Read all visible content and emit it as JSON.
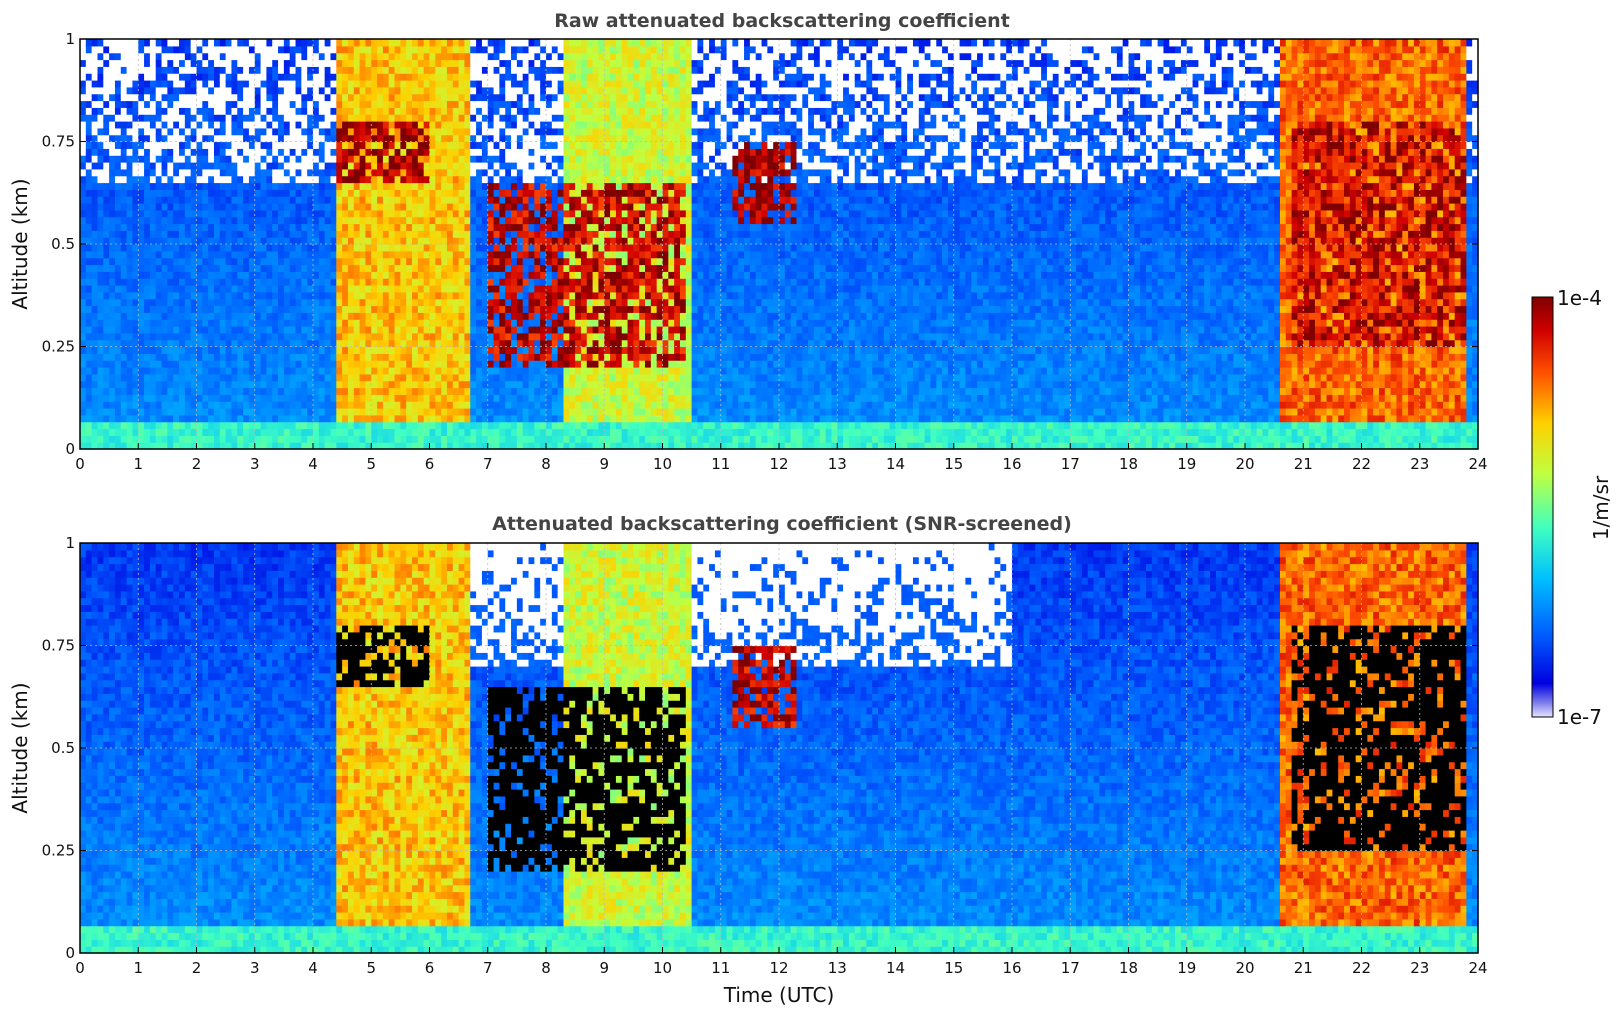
{
  "figure": {
    "xlabel": "Time (UTC)",
    "colorbar": {
      "label": "1/m/sr",
      "max_label": "1e-4",
      "min_label": "1e-7"
    }
  },
  "chart_data": [
    {
      "type": "heatmap",
      "title": "Raw attenuated backscattering coefficient",
      "xlabel": "",
      "ylabel": "Altitude (km)",
      "xlim": [
        0,
        24
      ],
      "ylim": [
        0,
        1
      ],
      "x_ticks": [
        0,
        1,
        2,
        3,
        4,
        5,
        6,
        7,
        8,
        9,
        10,
        11,
        12,
        13,
        14,
        15,
        16,
        17,
        18,
        19,
        20,
        21,
        22,
        23,
        24
      ],
      "y_ticks": [
        0,
        0.25,
        0.5,
        0.75,
        1
      ],
      "y_tick_labels": [
        "0",
        "0.25",
        "0.5",
        "0.75",
        "1"
      ],
      "grid": true,
      "colorscale": "jet",
      "log_color_range": [
        1e-07,
        0.0001
      ],
      "layers": [
        {
          "label": "surface",
          "x_range": [
            0,
            24
          ],
          "y_range": [
            0,
            0.06
          ],
          "log10_value": -5.7
        },
        {
          "label": "cloud",
          "x_range": [
            4.4,
            6.0
          ],
          "y_range": [
            0.65,
            0.8
          ],
          "log10_value": -4.1
        },
        {
          "label": "cloud",
          "x_range": [
            7.0,
            10.4
          ],
          "y_range": [
            0.2,
            0.65
          ],
          "log10_value": -4.2
        },
        {
          "label": "cloud",
          "x_range": [
            11.2,
            12.3
          ],
          "y_range": [
            0.55,
            0.75
          ],
          "log10_value": -4.1
        },
        {
          "label": "cloud",
          "x_range": [
            20.8,
            23.8
          ],
          "y_range": [
            0.25,
            0.8
          ],
          "log10_value": -4.2
        }
      ],
      "precip_columns": [
        {
          "x_range": [
            4.4,
            6.7
          ],
          "log10_value": -4.9
        },
        {
          "x_range": [
            8.3,
            10.5
          ],
          "log10_value": -5.2
        },
        {
          "x_range": [
            20.6,
            23.8
          ],
          "log10_value": -4.6
        }
      ],
      "screened": false
    },
    {
      "type": "heatmap",
      "title": "Attenuated backscattering coefficient (SNR-screened)",
      "xlabel": "Time (UTC)",
      "ylabel": "Altitude (km)",
      "xlim": [
        0,
        24
      ],
      "ylim": [
        0,
        1
      ],
      "x_ticks": [
        0,
        1,
        2,
        3,
        4,
        5,
        6,
        7,
        8,
        9,
        10,
        11,
        12,
        13,
        14,
        15,
        16,
        17,
        18,
        19,
        20,
        21,
        22,
        23,
        24
      ],
      "y_ticks": [
        0,
        0.25,
        0.5,
        0.75,
        1
      ],
      "y_tick_labels": [
        "0",
        "0.25",
        "0.5",
        "0.75",
        "1"
      ],
      "grid": true,
      "colorscale": "jet",
      "log_color_range": [
        1e-07,
        0.0001
      ],
      "layers": [
        {
          "label": "surface",
          "x_range": [
            0,
            24
          ],
          "y_range": [
            0,
            0.06
          ],
          "log10_value": -5.7
        },
        {
          "label": "cloud",
          "x_range": [
            4.4,
            6.0
          ],
          "y_range": [
            0.65,
            0.8
          ],
          "log10_value": -3.5
        },
        {
          "label": "cloud",
          "x_range": [
            7.0,
            10.4
          ],
          "y_range": [
            0.2,
            0.65
          ],
          "log10_value": -3.5
        },
        {
          "label": "cloud",
          "x_range": [
            11.2,
            12.3
          ],
          "y_range": [
            0.55,
            0.75
          ],
          "log10_value": -4.2
        },
        {
          "label": "cloud",
          "x_range": [
            20.8,
            23.8
          ],
          "y_range": [
            0.25,
            0.8
          ],
          "log10_value": -3.5
        }
      ],
      "precip_columns": [
        {
          "x_range": [
            4.4,
            6.7
          ],
          "log10_value": -4.9
        },
        {
          "x_range": [
            8.3,
            10.5
          ],
          "log10_value": -5.2
        },
        {
          "x_range": [
            20.6,
            23.8
          ],
          "log10_value": -4.6
        }
      ],
      "screened": true
    }
  ]
}
